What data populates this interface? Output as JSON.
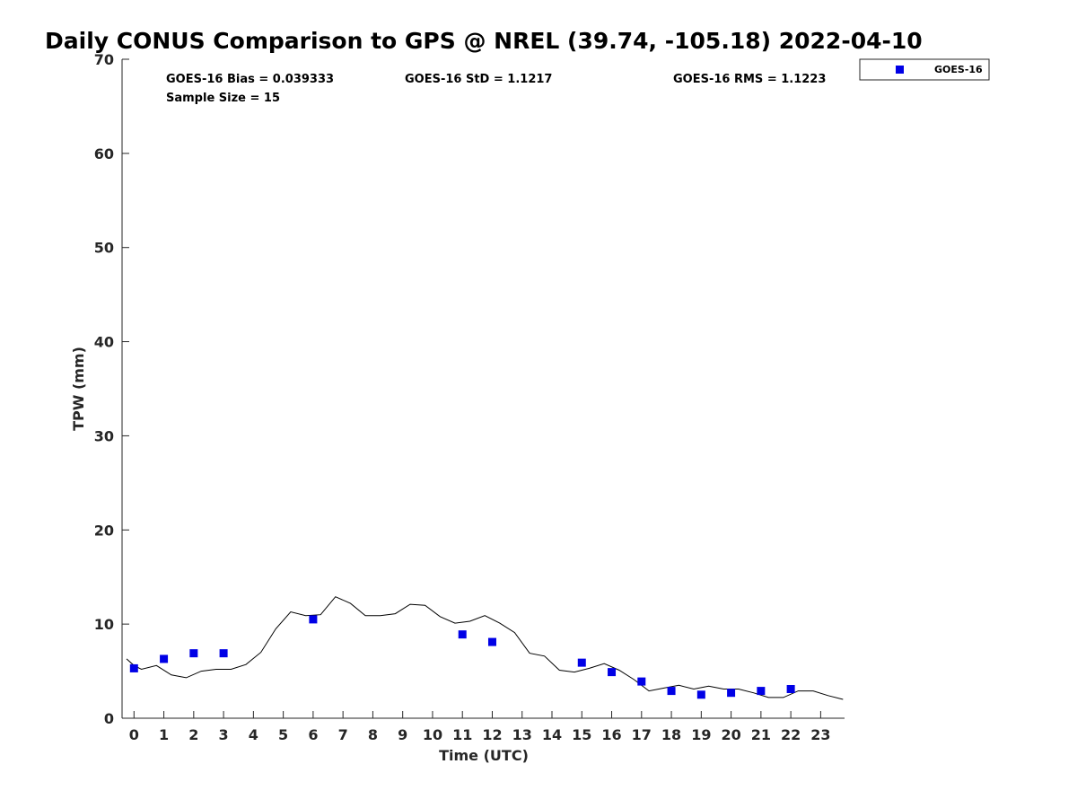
{
  "chart_data": {
    "type": "scatter",
    "title": "Daily CONUS Comparison to GPS @ NREL (39.74, -105.18) 2022-04-10",
    "xlabel": "Time (UTC)",
    "ylabel": "TPW (mm)",
    "xlim": [
      -0.4,
      23.8
    ],
    "ylim": [
      0,
      70
    ],
    "x_ticks": [
      0,
      1,
      2,
      3,
      4,
      5,
      6,
      7,
      8,
      9,
      10,
      11,
      12,
      13,
      14,
      15,
      16,
      17,
      18,
      19,
      20,
      21,
      22,
      23
    ],
    "y_ticks": [
      0,
      10,
      20,
      30,
      40,
      50,
      60,
      70
    ],
    "grid": false,
    "legend_placement": "top-right",
    "stats": {
      "bias": "GOES-16 Bias = 0.039333",
      "std": "GOES-16 StD = 1.1217",
      "rms": "GOES-16 RMS = 1.1223",
      "sample_size": "Sample Size = 15"
    },
    "series": [
      {
        "name": "GOES-16",
        "kind": "scatter",
        "color": "#0000e6",
        "marker": "square",
        "x": [
          0,
          1,
          2,
          3,
          6,
          11,
          12,
          15,
          16,
          17,
          18,
          19,
          20,
          21,
          22
        ],
        "y": [
          5.3,
          6.3,
          6.9,
          6.9,
          10.5,
          8.9,
          8.1,
          5.9,
          4.9,
          3.9,
          2.9,
          2.5,
          2.7,
          2.9,
          3.1
        ]
      },
      {
        "kind": "line",
        "color": "#000000",
        "x": [
          -0.25,
          0,
          0.25,
          0.75,
          1.25,
          1.75,
          2.25,
          2.75,
          3.25,
          3.75,
          4.25,
          4.75,
          5.25,
          5.75,
          6.25,
          6.75,
          7.25,
          7.75,
          8.25,
          8.75,
          9.25,
          9.75,
          10.25,
          10.75,
          11.25,
          11.75,
          12.25,
          12.75,
          13.25,
          13.75,
          14.25,
          14.75,
          15.25,
          15.75,
          16.25,
          16.75,
          17.25,
          17.75,
          18.25,
          18.75,
          19.25,
          19.75,
          20.25,
          20.75,
          21.25,
          21.75,
          22.25,
          22.75,
          23.25,
          23.75
        ],
        "y": [
          6.3,
          5.6,
          5.2,
          5.6,
          4.6,
          4.3,
          5.0,
          5.2,
          5.2,
          5.7,
          7.0,
          9.5,
          11.3,
          10.9,
          11.0,
          12.9,
          12.2,
          10.9,
          10.9,
          11.1,
          12.1,
          12.0,
          10.8,
          10.1,
          10.3,
          10.9,
          10.1,
          9.1,
          6.9,
          6.6,
          5.1,
          4.9,
          5.3,
          5.8,
          5.1,
          4.1,
          2.9,
          3.2,
          3.5,
          3.1,
          3.4,
          3.1,
          3.1,
          2.7,
          2.2,
          2.2,
          2.9,
          2.9,
          2.4,
          2.0
        ]
      }
    ]
  }
}
